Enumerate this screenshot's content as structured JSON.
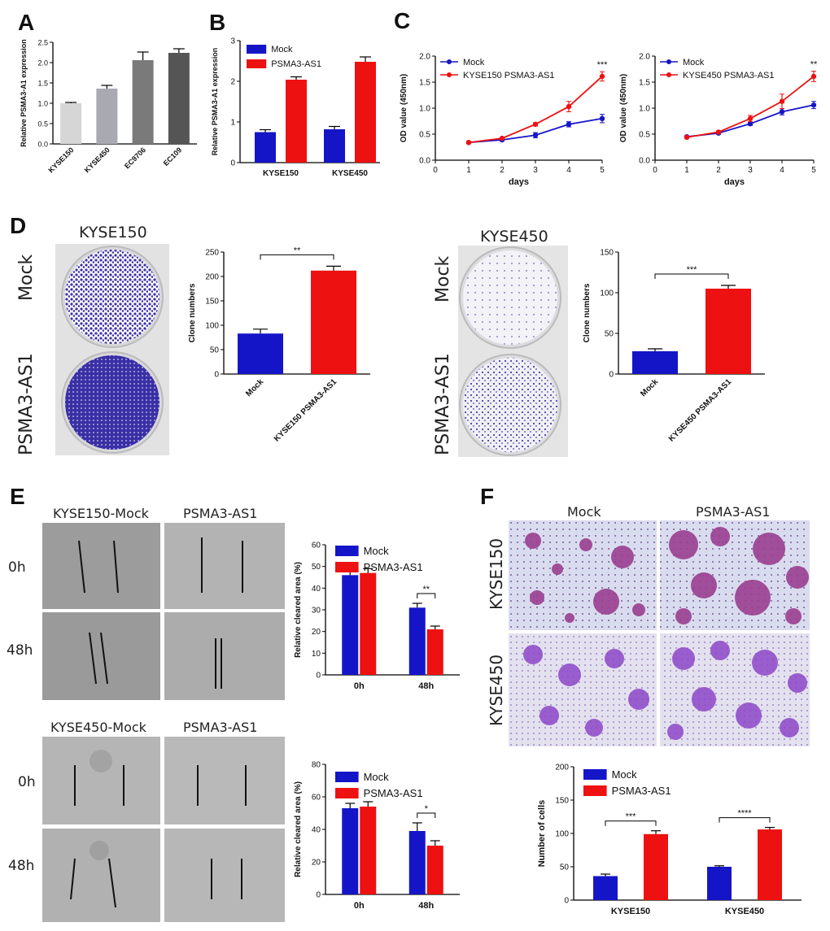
{
  "panels": {
    "A": "A",
    "B": "B",
    "C": "C",
    "D": "D",
    "E": "E",
    "F": "F"
  },
  "colors": {
    "mock": "#1515c8",
    "psma": "#ee1111",
    "grey1": "#d6d6d6",
    "grey2": "#a9a9b2",
    "grey3": "#7a7a7a",
    "grey4": "#555555"
  },
  "chart_data": [
    {
      "id": "A",
      "type": "bar",
      "ylabel": "Relative PSMA3-A1 expression",
      "categories": [
        "KYSE150",
        "KYSE450",
        "EC9706",
        "EC109"
      ],
      "values": [
        1.0,
        1.36,
        2.06,
        2.24
      ],
      "errors": [
        0.02,
        0.08,
        0.2,
        0.1
      ],
      "ylim": [
        0,
        2.5
      ],
      "yticks": [
        "0.0",
        "0.5",
        "1.0",
        "1.5",
        "2.0",
        "2.5"
      ]
    },
    {
      "id": "B",
      "type": "bar",
      "ylabel": "Relative PSMA3-A1 expression",
      "categories": [
        "KYSE150",
        "KYSE450"
      ],
      "legend": [
        "Mock",
        "PSMA3-AS1"
      ],
      "series": [
        {
          "name": "Mock",
          "values": [
            0.75,
            0.82
          ],
          "errors": [
            0.06,
            0.07
          ]
        },
        {
          "name": "PSMA3-AS1",
          "values": [
            2.04,
            2.48
          ],
          "errors": [
            0.07,
            0.12
          ]
        }
      ],
      "ylim": [
        0,
        3
      ],
      "yticks": [
        "0",
        "1",
        "2",
        "3"
      ]
    },
    {
      "id": "C1",
      "type": "line",
      "xlabel": "days",
      "ylabel": "OD value (450nm)",
      "legend": [
        "Mock",
        "KYSE150 PSMA3-AS1"
      ],
      "x": [
        1,
        2,
        3,
        4,
        5
      ],
      "series": [
        {
          "name": "Mock",
          "values": [
            0.34,
            0.39,
            0.48,
            0.69,
            0.8
          ],
          "errors": [
            0.02,
            0.02,
            0.05,
            0.05,
            0.08
          ]
        },
        {
          "name": "KYSE150 PSMA3-AS1",
          "values": [
            0.34,
            0.42,
            0.69,
            1.03,
            1.61
          ],
          "errors": [
            0.02,
            0.02,
            0.03,
            0.1,
            0.09
          ]
        }
      ],
      "xlim": [
        0,
        5
      ],
      "ylim": [
        0,
        2
      ],
      "xticks": [
        "0",
        "1",
        "2",
        "3",
        "4",
        "5"
      ],
      "yticks": [
        "0.0",
        "0.5",
        "1.0",
        "1.5",
        "2.0"
      ],
      "annotation": "***"
    },
    {
      "id": "C2",
      "type": "line",
      "xlabel": "days",
      "ylabel": "OD value (450nm)",
      "legend": [
        "Mock",
        "KYSE450 PSMA3-AS1"
      ],
      "x": [
        1,
        2,
        3,
        4,
        5
      ],
      "series": [
        {
          "name": "Mock",
          "values": [
            0.45,
            0.52,
            0.7,
            0.93,
            1.06
          ],
          "errors": [
            0.02,
            0.02,
            0.03,
            0.06,
            0.07
          ]
        },
        {
          "name": "KYSE450 PSMA3-AS1",
          "values": [
            0.44,
            0.54,
            0.8,
            1.13,
            1.61
          ],
          "errors": [
            0.02,
            0.02,
            0.06,
            0.14,
            0.1
          ]
        }
      ],
      "xlim": [
        0,
        5
      ],
      "ylim": [
        0,
        2
      ],
      "xticks": [
        "0",
        "1",
        "2",
        "3",
        "4",
        "5"
      ],
      "yticks": [
        "0.0",
        "0.5",
        "1.0",
        "1.5",
        "2.0"
      ],
      "annotation": "**"
    },
    {
      "id": "D1",
      "type": "bar",
      "ylabel": "Clone numbers",
      "categories": [
        "Mock",
        "KYSE150 PSMA3-AS1"
      ],
      "values": [
        83,
        212
      ],
      "errors": [
        9,
        9
      ],
      "ylim": [
        0,
        250
      ],
      "yticks": [
        "0",
        "50",
        "100",
        "150",
        "200",
        "250"
      ],
      "annotation": "**"
    },
    {
      "id": "D2",
      "type": "bar",
      "ylabel": "Clone numbers",
      "categories": [
        "Mock",
        "KYSE450 PSMA3-AS1"
      ],
      "values": [
        28,
        105
      ],
      "errors": [
        3,
        4
      ],
      "ylim": [
        0,
        150
      ],
      "yticks": [
        "0",
        "50",
        "100",
        "150"
      ],
      "annotation": "***"
    },
    {
      "id": "E1",
      "type": "bar",
      "ylabel": "Relative cleared area (%)",
      "categories": [
        "0h",
        "48h"
      ],
      "legend": [
        "Mock",
        "PSMA3-AS1"
      ],
      "series": [
        {
          "name": "Mock",
          "values": [
            46,
            31
          ],
          "errors": [
            2,
            2
          ]
        },
        {
          "name": "PSMA3-AS1",
          "values": [
            47,
            21
          ],
          "errors": [
            2,
            1.5
          ]
        }
      ],
      "ylim": [
        0,
        60
      ],
      "yticks": [
        "0",
        "10",
        "20",
        "30",
        "40",
        "50",
        "60"
      ],
      "annotation": "**"
    },
    {
      "id": "E2",
      "type": "bar",
      "ylabel": "Relative cleared area (%)",
      "categories": [
        "0h",
        "48h"
      ],
      "legend": [
        "Mock",
        "PSMA3-AS1"
      ],
      "series": [
        {
          "name": "Mock",
          "values": [
            53,
            39
          ],
          "errors": [
            3,
            5
          ]
        },
        {
          "name": "PSMA3-AS1",
          "values": [
            54,
            30
          ],
          "errors": [
            3,
            3
          ]
        }
      ],
      "ylim": [
        0,
        80
      ],
      "yticks": [
        "0",
        "20",
        "40",
        "60",
        "80"
      ],
      "annotation": "*"
    },
    {
      "id": "F",
      "type": "bar",
      "ylabel": "Number of cells",
      "categories": [
        "KYSE150",
        "KYSE450"
      ],
      "legend": [
        "Mock",
        "PSMA3-AS1"
      ],
      "series": [
        {
          "name": "Mock",
          "values": [
            36,
            50
          ],
          "errors": [
            3,
            1.5
          ]
        },
        {
          "name": "PSMA3-AS1",
          "values": [
            99,
            106
          ],
          "errors": [
            5,
            3
          ]
        }
      ],
      "ylim": [
        0,
        200
      ],
      "yticks": [
        "0",
        "50",
        "100",
        "150",
        "200"
      ],
      "annotations": [
        "***",
        "****"
      ]
    }
  ],
  "photo_labels": {
    "d_left_title": "KYSE150",
    "d_right_title": "KYSE450",
    "mock": "Mock",
    "psma": "PSMA3-AS1",
    "e_top_left": "KYSE150-Mock",
    "e_top_right": "PSMA3-AS1",
    "e_bot_left": "KYSE450-Mock",
    "e_bot_right": "PSMA3-AS1",
    "t0": "0h",
    "t48": "48h",
    "f_mock": "Mock",
    "f_psma": "PSMA3-AS1",
    "f_row1": "KYSE150",
    "f_row2": "KYSE450"
  }
}
